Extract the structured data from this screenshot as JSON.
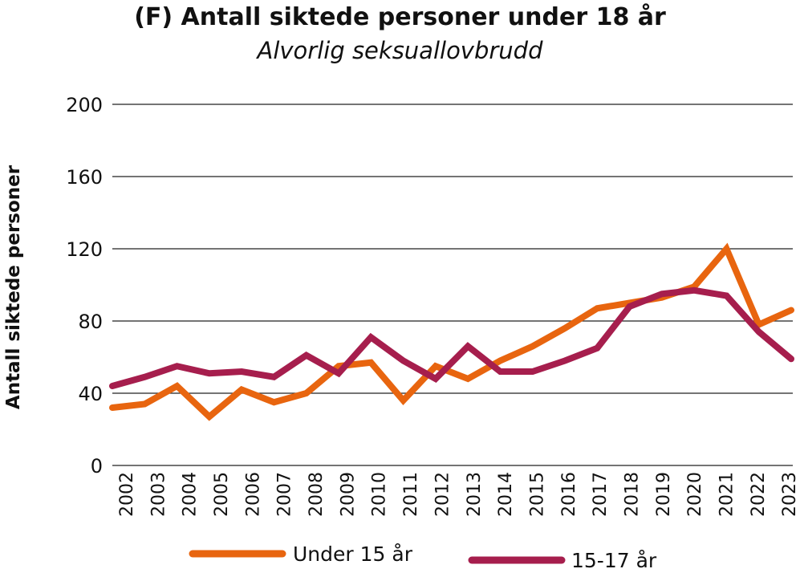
{
  "chart_data": {
    "type": "line",
    "title": "(F) Antall siktede personer under 18 år",
    "subtitle": "Alvorlig seksuallovbrudd",
    "xlabel": "",
    "ylabel": "Antall siktede personer",
    "ylim": [
      0,
      200
    ],
    "yticks": [
      0,
      40,
      80,
      120,
      160,
      200
    ],
    "grid": true,
    "legend_position": "bottom",
    "categories": [
      "2002",
      "2003",
      "2004",
      "2005",
      "2006",
      "2007",
      "2008",
      "2009",
      "2010",
      "2011",
      "2012",
      "2013",
      "2014",
      "2015",
      "2016",
      "2017",
      "2018",
      "2019",
      "2020",
      "2021",
      "2022",
      "2023"
    ],
    "series": [
      {
        "name": "Under 15 år",
        "color": "#e8650f",
        "values": [
          32,
          34,
          44,
          27,
          42,
          35,
          40,
          55,
          57,
          36,
          55,
          48,
          58,
          66,
          76,
          87,
          90,
          93,
          99,
          120,
          78,
          86
        ]
      },
      {
        "name": "15-17 år",
        "color": "#a61e4d",
        "values": [
          44,
          49,
          55,
          51,
          52,
          49,
          61,
          51,
          71,
          58,
          48,
          66,
          52,
          52,
          58,
          65,
          88,
          95,
          97,
          94,
          74,
          59
        ]
      }
    ]
  }
}
